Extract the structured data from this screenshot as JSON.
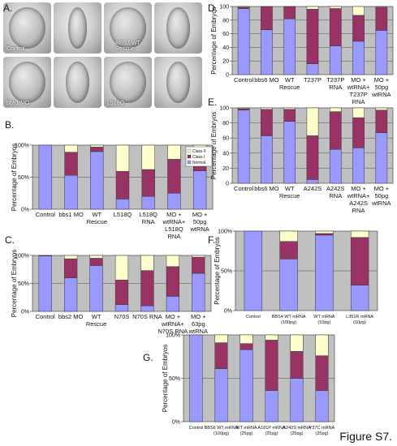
{
  "figure_label": "Figure S7.",
  "photo_panel": {
    "letter": "A.",
    "captions": [
      "Control",
      "BBS7 WT Rescue",
      "bbs1 MO",
      "L518Q"
    ]
  },
  "legend": {
    "entries": [
      "Class II",
      "Class I",
      "Normal"
    ]
  },
  "colors": {
    "normal": "#9999ff",
    "class1": "#993366",
    "class2": "#ffffcc",
    "plot_bg": "#c0c0c0"
  },
  "chart_data": [
    {
      "panel": "B.",
      "type": "bar",
      "stacked": true,
      "ylabel": "Percentage of Embryos",
      "yticks": [
        "0%",
        "50%",
        "100%"
      ],
      "ylim": [
        0,
        100
      ],
      "categories": [
        "Control",
        "bbs1 MO",
        "WT Rescue",
        "L518Q",
        "L518Q RNA",
        "MO + wtRNA+ L518Q RNA",
        "MO + 50pg wtRNA"
      ],
      "series": [
        {
          "name": "Normal",
          "values": [
            100,
            53,
            90,
            16,
            20,
            25,
            60
          ]
        },
        {
          "name": "Class I",
          "values": [
            0,
            36,
            7,
            43,
            42,
            53,
            35
          ]
        },
        {
          "name": "Class II",
          "values": [
            0,
            11,
            3,
            41,
            38,
            22,
            5
          ]
        }
      ],
      "legend": "inside-top-right"
    },
    {
      "panel": "C.",
      "type": "bar",
      "stacked": true,
      "ylabel": "Percentage of Embryos",
      "yticks": [
        "0%",
        "50%",
        "100%"
      ],
      "ylim": [
        0,
        100
      ],
      "categories": [
        "Control",
        "bbs2 MO",
        "WT Rescue",
        "N70S",
        "N70S RNA",
        "MO + wtRNA+ N70S RNA",
        "MO + 63pg wtRNA"
      ],
      "series": [
        {
          "name": "Normal",
          "values": [
            99,
            60,
            82,
            12,
            10,
            27,
            68
          ]
        },
        {
          "name": "Class I",
          "values": [
            1,
            34,
            13,
            44,
            63,
            53,
            29
          ]
        },
        {
          "name": "Class II",
          "values": [
            0,
            6,
            5,
            44,
            27,
            20,
            3
          ]
        }
      ]
    },
    {
      "panel": "D.",
      "type": "bar",
      "stacked": true,
      "ylabel": "Percentage of Embryos",
      "yticks": [
        "0",
        "20",
        "40",
        "60",
        "80",
        "100"
      ],
      "ylim": [
        0,
        100
      ],
      "categories": [
        "Control",
        "bbs6 MO",
        "WT Rescue",
        "T237P",
        "T237P RNA",
        "MO + wtRNA+ T237P RNA",
        "MO + 50pg wtRNA"
      ],
      "series": [
        {
          "name": "Normal",
          "values": [
            97,
            66,
            82,
            16,
            42,
            49,
            65
          ]
        },
        {
          "name": "Class I",
          "values": [
            2,
            34,
            18,
            80,
            55,
            38,
            34
          ]
        },
        {
          "name": "Class II",
          "values": [
            1,
            0,
            0,
            4,
            3,
            13,
            1
          ]
        }
      ]
    },
    {
      "panel": "E.",
      "type": "bar",
      "stacked": true,
      "ylabel": "Percentage of Embryos",
      "yticks": [
        "0",
        "20",
        "40",
        "60",
        "80",
        "100"
      ],
      "ylim": [
        0,
        100
      ],
      "categories": [
        "Control",
        "bbs6 MO",
        "WT Rescue",
        "A242S",
        "A242S RNA",
        "MO + wtRNA+ A242S RNA",
        "MO + 50pg wtRNA"
      ],
      "series": [
        {
          "name": "Normal",
          "values": [
            97,
            63,
            82,
            5,
            45,
            47,
            67
          ]
        },
        {
          "name": "Class I",
          "values": [
            2,
            35,
            16,
            58,
            50,
            40,
            30
          ]
        },
        {
          "name": "Class II",
          "values": [
            1,
            2,
            2,
            37,
            5,
            13,
            3
          ]
        }
      ]
    },
    {
      "panel": "F.",
      "type": "bar",
      "stacked": true,
      "ylabel": "Percentage of Embryos",
      "yticks": [
        "0%",
        "50%",
        "100%"
      ],
      "ylim": [
        0,
        100
      ],
      "categories": [
        "Control",
        "BBS4 WT mRNA (100pg)",
        "WT mRNA (10pg)",
        "L351R mRNA (10pg)"
      ],
      "series": [
        {
          "name": "Normal",
          "values": [
            100,
            65,
            95,
            32
          ]
        },
        {
          "name": "Class I",
          "values": [
            0,
            22,
            2,
            60
          ]
        },
        {
          "name": "Class II",
          "values": [
            0,
            13,
            3,
            8
          ]
        }
      ]
    },
    {
      "panel": "G.",
      "type": "bar",
      "stacked": true,
      "ylabel": "Percentage of Embryos",
      "yticks": [
        "0%",
        "50%",
        "100%"
      ],
      "ylim": [
        0,
        100
      ],
      "categories": [
        "Control",
        "BBS6 WT mRNA (100pg)",
        "WT mRNA (25pg)",
        "A181P mRNA (25pg)",
        "A242S mRNA (25pg)",
        "Y37C mRNA (25pg)"
      ],
      "series": [
        {
          "name": "Normal",
          "values": [
            100,
            61,
            83,
            36,
            50,
            36
          ]
        },
        {
          "name": "Class I",
          "values": [
            0,
            30,
            7,
            58,
            31,
            40
          ]
        },
        {
          "name": "Class II",
          "values": [
            0,
            9,
            10,
            6,
            19,
            24
          ]
        }
      ]
    }
  ]
}
